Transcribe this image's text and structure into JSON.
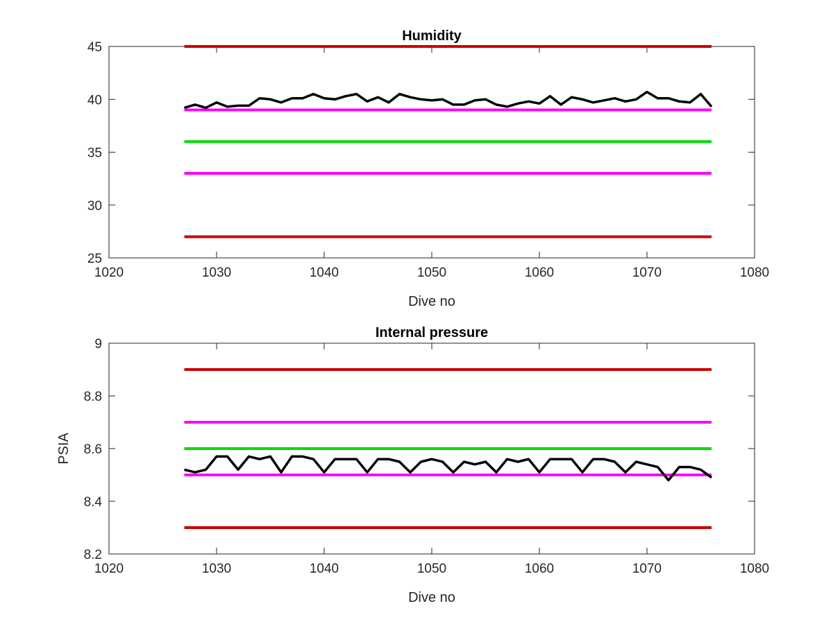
{
  "chart_data": [
    {
      "type": "line",
      "title": "Humidity",
      "xlabel": "Dive no",
      "ylabel": "",
      "xlim": [
        1020,
        1080
      ],
      "ylim": [
        25,
        45
      ],
      "xticks": [
        1020,
        1030,
        1040,
        1050,
        1060,
        1070,
        1080
      ],
      "yticks": [
        25,
        30,
        35,
        40,
        45
      ],
      "grid": false,
      "legend": "none",
      "thresholds": [
        {
          "y": 45,
          "color": "#cc0000"
        },
        {
          "y": 39,
          "color": "#ff00ff"
        },
        {
          "y": 36,
          "color": "#00dd00"
        },
        {
          "y": 33,
          "color": "#ff00ff"
        },
        {
          "y": 27,
          "color": "#cc0000"
        }
      ],
      "series": [
        {
          "color": "#000000",
          "x": [
            1027,
            1028,
            1029,
            1030,
            1031,
            1032,
            1033,
            1034,
            1035,
            1036,
            1037,
            1038,
            1039,
            1040,
            1041,
            1042,
            1043,
            1044,
            1045,
            1046,
            1047,
            1048,
            1049,
            1050,
            1051,
            1052,
            1053,
            1054,
            1055,
            1056,
            1057,
            1058,
            1059,
            1060,
            1061,
            1062,
            1063,
            1064,
            1065,
            1066,
            1067,
            1068,
            1069,
            1070,
            1071,
            1072,
            1073,
            1074,
            1075,
            1076
          ],
          "y": [
            39.2,
            39.5,
            39.2,
            39.7,
            39.3,
            39.4,
            39.4,
            40.1,
            40.0,
            39.7,
            40.1,
            40.1,
            40.5,
            40.1,
            40.0,
            40.3,
            40.5,
            39.8,
            40.2,
            39.7,
            40.5,
            40.2,
            40.0,
            39.9,
            40.0,
            39.5,
            39.5,
            39.9,
            40.0,
            39.5,
            39.3,
            39.6,
            39.8,
            39.6,
            40.3,
            39.5,
            40.2,
            40.0,
            39.7,
            39.9,
            40.1,
            39.8,
            40.0,
            40.7,
            40.1,
            40.1,
            39.8,
            39.7,
            40.5,
            39.3
          ]
        }
      ]
    },
    {
      "type": "line",
      "title": "Internal pressure",
      "xlabel": "Dive no",
      "ylabel": "PSIA",
      "xlim": [
        1020,
        1080
      ],
      "ylim": [
        8.2,
        9.0
      ],
      "xticks": [
        1020,
        1030,
        1040,
        1050,
        1060,
        1070,
        1080
      ],
      "yticks": [
        8.2,
        8.4,
        8.6,
        8.8,
        9.0
      ],
      "yticklabels": [
        "8.2",
        "8.4",
        "8.6",
        "8.8",
        "9"
      ],
      "grid": false,
      "legend": "none",
      "thresholds": [
        {
          "y": 8.9,
          "color": "#cc0000"
        },
        {
          "y": 8.7,
          "color": "#ff00ff"
        },
        {
          "y": 8.6,
          "color": "#00dd00"
        },
        {
          "y": 8.5,
          "color": "#ff00ff"
        },
        {
          "y": 8.3,
          "color": "#cc0000"
        }
      ],
      "series": [
        {
          "color": "#000000",
          "x": [
            1027,
            1028,
            1029,
            1030,
            1031,
            1032,
            1033,
            1034,
            1035,
            1036,
            1037,
            1038,
            1039,
            1040,
            1041,
            1042,
            1043,
            1044,
            1045,
            1046,
            1047,
            1048,
            1049,
            1050,
            1051,
            1052,
            1053,
            1054,
            1055,
            1056,
            1057,
            1058,
            1059,
            1060,
            1061,
            1062,
            1063,
            1064,
            1065,
            1066,
            1067,
            1068,
            1069,
            1070,
            1071,
            1072,
            1073,
            1074,
            1075,
            1076
          ],
          "y": [
            8.52,
            8.51,
            8.52,
            8.57,
            8.57,
            8.52,
            8.57,
            8.56,
            8.57,
            8.51,
            8.57,
            8.57,
            8.56,
            8.51,
            8.56,
            8.56,
            8.56,
            8.51,
            8.56,
            8.56,
            8.55,
            8.51,
            8.55,
            8.56,
            8.55,
            8.51,
            8.55,
            8.54,
            8.55,
            8.51,
            8.56,
            8.55,
            8.56,
            8.51,
            8.56,
            8.56,
            8.56,
            8.51,
            8.56,
            8.56,
            8.55,
            8.51,
            8.55,
            8.54,
            8.53,
            8.48,
            8.53,
            8.53,
            8.52,
            8.49
          ]
        }
      ]
    }
  ]
}
